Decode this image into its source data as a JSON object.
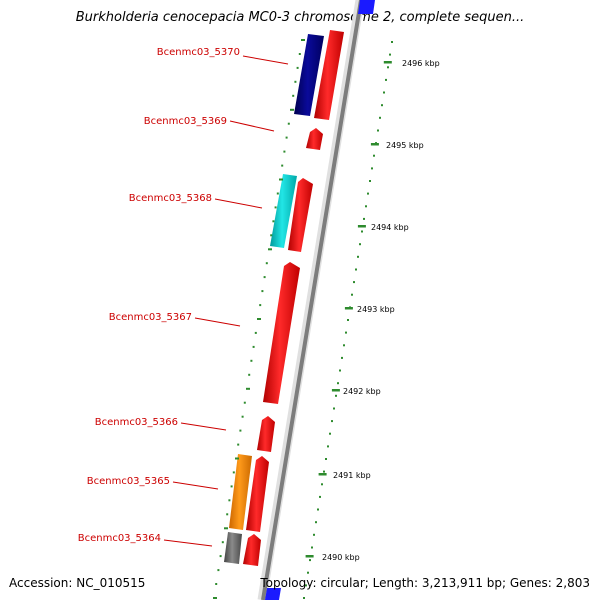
{
  "title": "Burkholderia cenocepacia MC0-3 chromosome 2, complete sequen...",
  "footer": {
    "accession": "Accession: NC_010515",
    "topology": "Topology: circular; Length: 3,213,911 bp; Genes: 2,803"
  },
  "genes": [
    {
      "label": "Bcenmc03_5370",
      "color": "#ff0000",
      "companion_color": "#000080"
    },
    {
      "label": "Bcenmc03_5369",
      "color": "#ff0000",
      "companion_color": null
    },
    {
      "label": "Bcenmc03_5368",
      "color": "#ff0000",
      "companion_color": "#00cccc"
    },
    {
      "label": "Bcenmc03_5367",
      "color": "#ff0000",
      "companion_color": null
    },
    {
      "label": "Bcenmc03_5366",
      "color": "#ff0000",
      "companion_color": null
    },
    {
      "label": "Bcenmc03_5365",
      "color": "#ff0000",
      "companion_color": "#ff8800"
    },
    {
      "label": "Bcenmc03_5364",
      "color": "#ff0000",
      "companion_color": "#666666"
    }
  ],
  "ticks": [
    {
      "label": "2496 kbp"
    },
    {
      "label": "2495 kbp"
    },
    {
      "label": "2494 kbp"
    },
    {
      "label": "2493 kbp"
    },
    {
      "label": "2492 kbp"
    },
    {
      "label": "2491 kbp"
    },
    {
      "label": "2490 kbp"
    }
  ],
  "colors": {
    "backbone": "#8c8c8c",
    "backbone_accent": "#1a1aff",
    "tick": "#2e8b2e",
    "label_line": "#cc0000"
  }
}
